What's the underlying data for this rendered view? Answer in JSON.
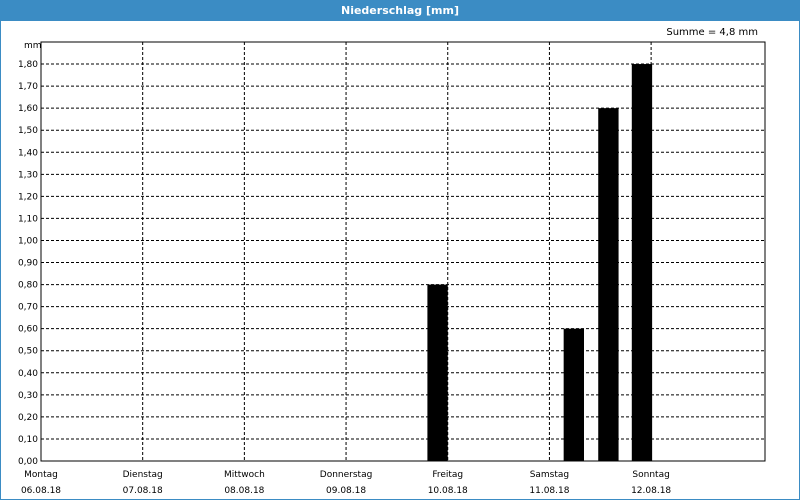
{
  "window": {
    "title": "Niederschlag [mm]"
  },
  "summary": "Summe = 4,8 mm",
  "chart_data": {
    "type": "bar",
    "title": "Niederschlag [mm]",
    "ylabel": "mm",
    "ylim": [
      0,
      1.9
    ],
    "yticks": [
      "0,00",
      "0,10",
      "0,20",
      "0,30",
      "0,40",
      "0,50",
      "0,60",
      "0,70",
      "0,80",
      "0,90",
      "1,00",
      "1,10",
      "1,20",
      "1,30",
      "1,40",
      "1,50",
      "1,60",
      "1,70",
      "1,80"
    ],
    "xlim": [
      0,
      7.12
    ],
    "days": [
      {
        "weekday": "Montag",
        "date": "06.08.18"
      },
      {
        "weekday": "Dienstag",
        "date": "07.08.18"
      },
      {
        "weekday": "Mittwoch",
        "date": "08.08.18"
      },
      {
        "weekday": "Donnerstag",
        "date": "09.08.18"
      },
      {
        "weekday": "Freitag",
        "date": "10.08.18"
      },
      {
        "weekday": "Samstag",
        "date": "11.08.18"
      },
      {
        "weekday": "Sonntag",
        "date": "12.08.18"
      }
    ],
    "bars": [
      {
        "x": 3.8,
        "value": 0.8
      },
      {
        "x": 5.14,
        "value": 0.6
      },
      {
        "x": 5.48,
        "value": 1.6
      },
      {
        "x": 5.81,
        "value": 1.8
      }
    ],
    "bar_width_days": 0.2,
    "grid": true,
    "colors": {
      "bar": "#000000",
      "frame": "#3b8cc4"
    }
  }
}
